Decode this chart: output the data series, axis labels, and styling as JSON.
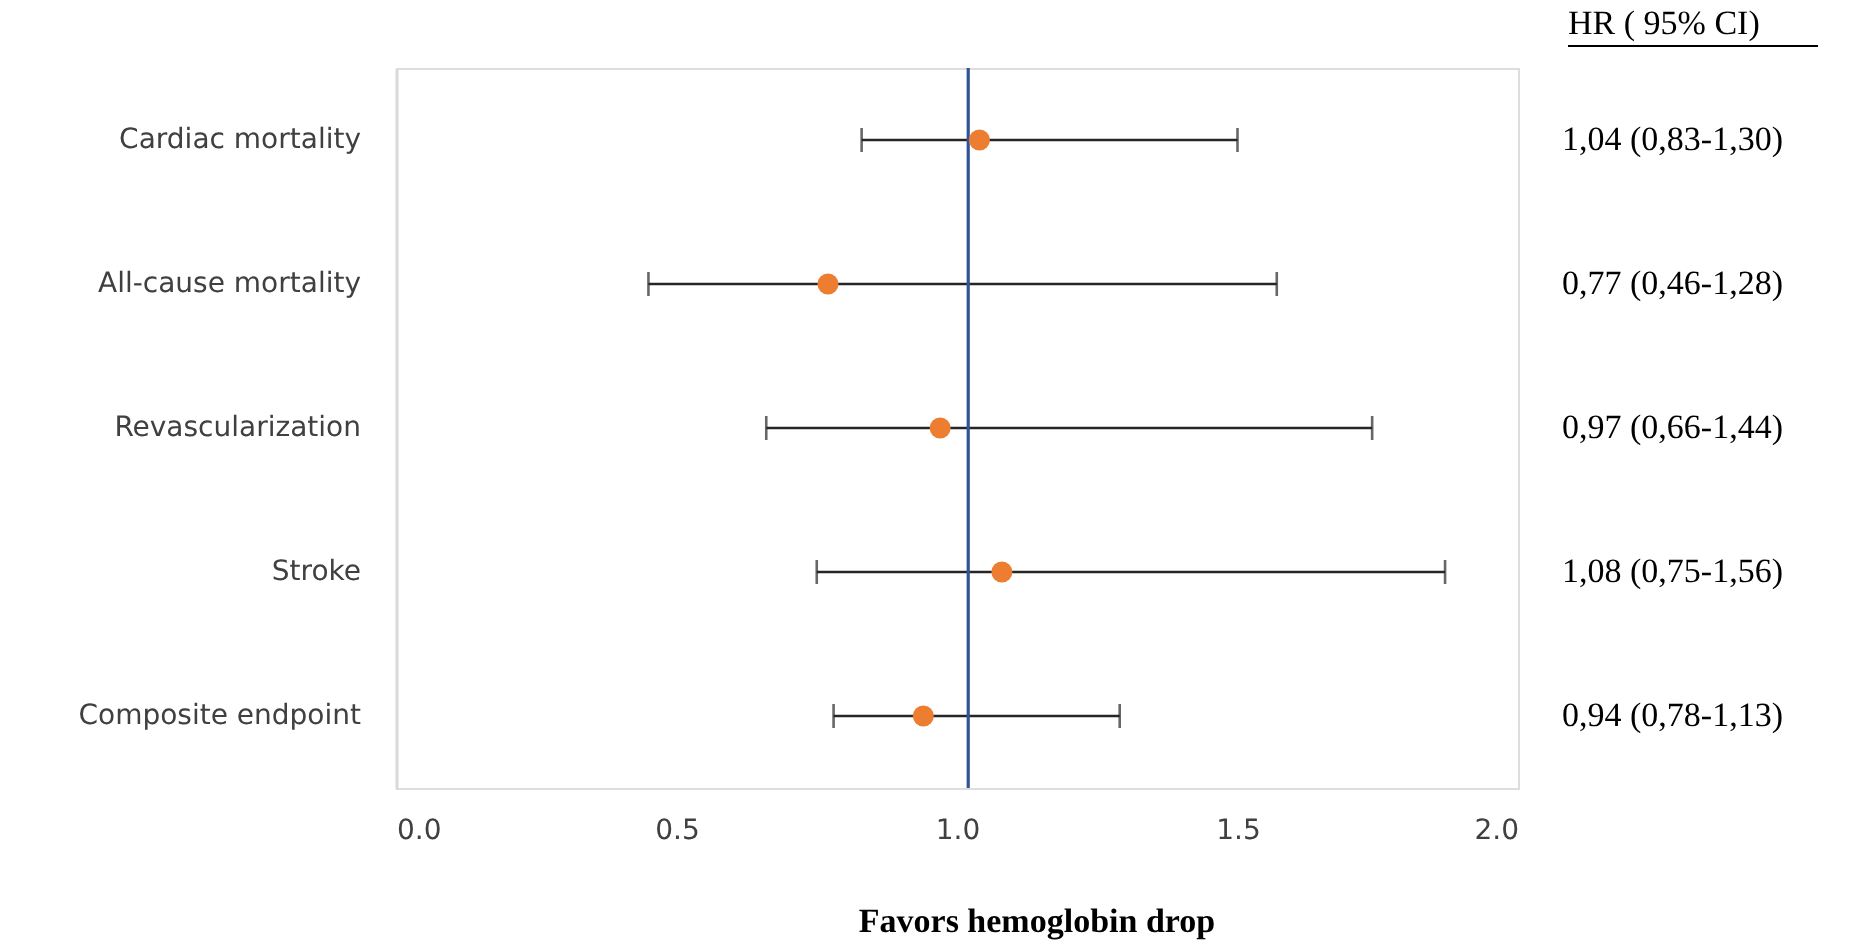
{
  "chart_data": {
    "type": "scatter",
    "orientation": "horizontal",
    "categories": [
      "Cardiac mortality",
      "All-cause mortality",
      "Revascularization",
      "Stroke",
      "Composite endpoint"
    ],
    "values": [
      1.04,
      0.77,
      0.97,
      1.08,
      0.94
    ],
    "errors": [
      [
        0.83,
        1.5
      ],
      [
        0.45,
        1.57
      ],
      [
        0.66,
        1.74
      ],
      [
        0.75,
        1.87
      ],
      [
        0.78,
        1.29
      ]
    ],
    "color": "#ed7d31",
    "marker": "circle",
    "value_labels": [
      "1,04 (0,83-1,30)",
      "0,77 (0,46-1,28)",
      "0,97 (0,66-1,44)",
      "1,08 (0,75-1,56)",
      "0,94 (0,78-1,13)"
    ],
    "xlim": [
      0,
      2
    ],
    "xticks": [
      {
        "value": 0,
        "label": "0.0"
      },
      {
        "value": 0.5,
        "label": "0.5"
      },
      {
        "value": 1,
        "label": "1.0"
      },
      {
        "value": 1.5,
        "label": "1.5"
      },
      {
        "value": 2,
        "label": "2.0"
      }
    ],
    "xlabel": "Favors hemoglobin drop",
    "annotations": [
      "HR ( 95% CI)"
    ],
    "ref_lines": [
      {
        "axis": "x",
        "value": 1.02,
        "color": "#2f5597"
      }
    ]
  }
}
